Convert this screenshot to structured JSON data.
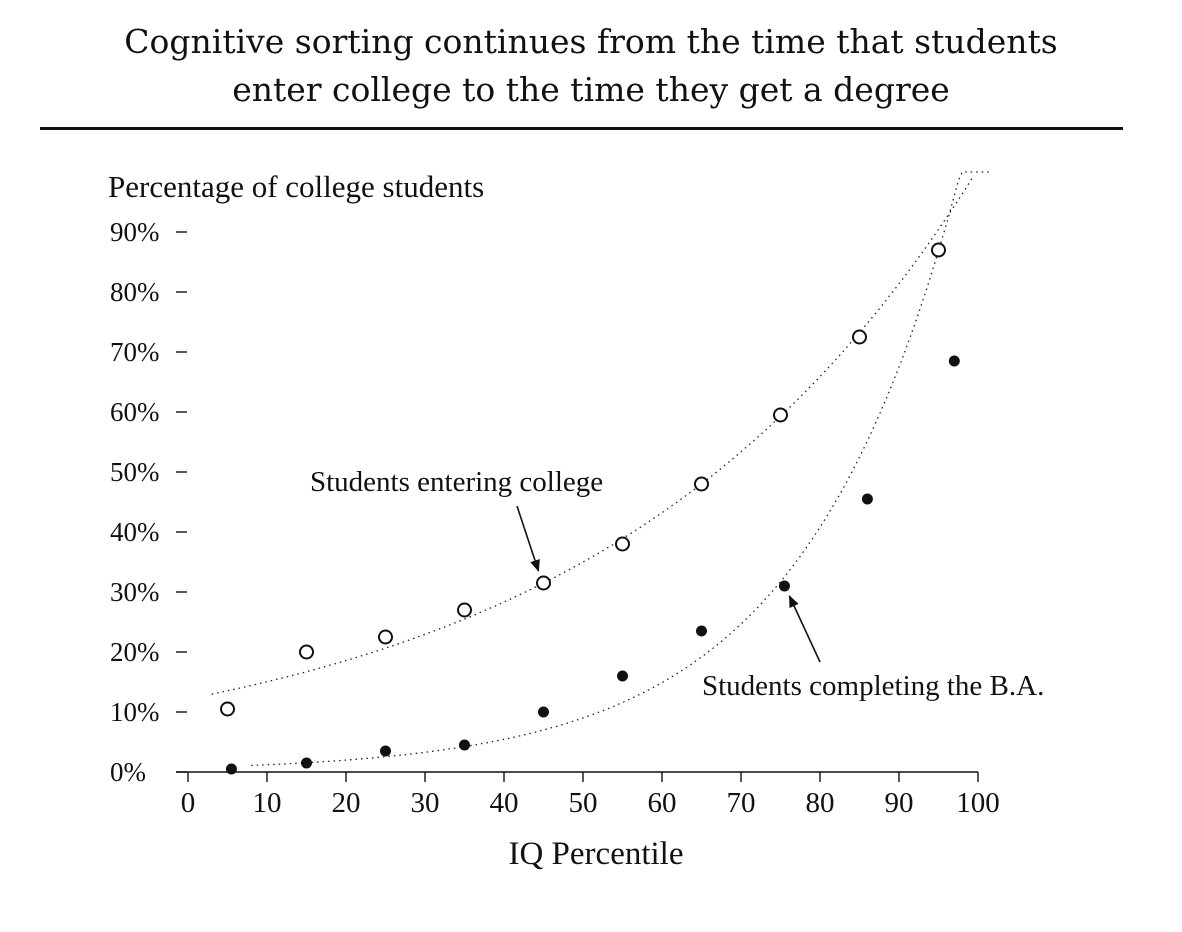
{
  "chart_data": {
    "type": "scatter",
    "title": "Cognitive sorting continues from the time that students enter college to the time they get a degree",
    "title_lines": [
      "Cognitive sorting continues from the time that students",
      "enter college to the time they get a degree"
    ],
    "ylabel": "Percentage of college students",
    "xlabel": "IQ Percentile",
    "xlim": [
      0,
      100
    ],
    "ylim": [
      0,
      90
    ],
    "x_ticks": [
      0,
      10,
      20,
      30,
      40,
      50,
      60,
      70,
      80,
      90,
      100
    ],
    "x_tick_labels": [
      "0",
      "10",
      "20",
      "30",
      "40",
      "50",
      "60",
      "70",
      "80",
      "90",
      "100"
    ],
    "y_ticks": [
      0,
      10,
      20,
      30,
      40,
      50,
      60,
      70,
      80,
      90
    ],
    "y_tick_labels": [
      "0%",
      "10%",
      "20%",
      "30%",
      "40%",
      "50%",
      "60%",
      "70%",
      "80%",
      "90%"
    ],
    "grid": false,
    "series": [
      {
        "name": "Students entering college",
        "marker": "open-circle",
        "x": [
          5,
          15,
          25,
          35,
          45,
          55,
          65,
          75,
          85,
          95
        ],
        "y": [
          10.5,
          20,
          22.5,
          27,
          31.5,
          38,
          48,
          59.5,
          72.5,
          87
        ]
      },
      {
        "name": "Students completing the B.A.",
        "marker": "filled-circle",
        "x": [
          5.5,
          15,
          25,
          35,
          45,
          55,
          65,
          75.5,
          86,
          97
        ],
        "y": [
          0.5,
          1.5,
          3.5,
          4.5,
          10,
          16,
          23.5,
          31,
          45.5,
          68.5
        ]
      }
    ],
    "annotations": [
      {
        "text": "Students entering college",
        "points_to": [
          45,
          31.5
        ],
        "position": "above-left"
      },
      {
        "text": "Students completing the B.A.",
        "points_to": [
          75.5,
          31
        ],
        "position": "below-right"
      }
    ],
    "trend_lines": "dotted exponential fit through each series",
    "colors": {
      "ink": "#111111",
      "background": "#ffffff"
    }
  }
}
